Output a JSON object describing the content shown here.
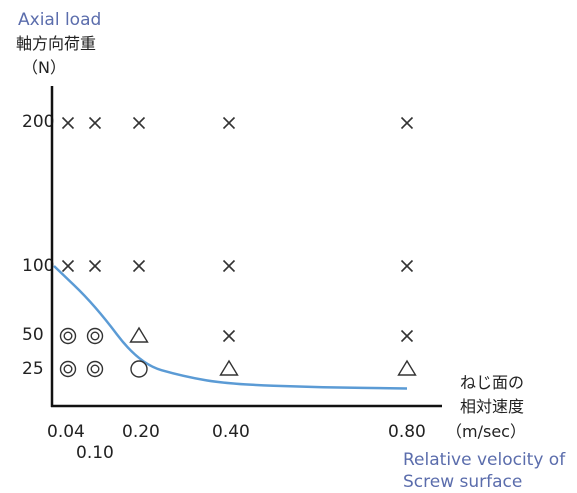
{
  "chart_data": {
    "type": "scatter",
    "title": "",
    "y_axis": {
      "label_en": "Axial load",
      "label_ja": "軸方向荷重",
      "unit": "（N）",
      "ticks": [
        "200",
        "100",
        "50",
        "25"
      ],
      "tick_values": [
        200,
        100,
        50,
        25
      ]
    },
    "x_axis": {
      "label_ja_line1": "ねじ面の",
      "label_ja_line2": "相対速度",
      "unit": "（m/sec）",
      "label_en_line1": "Relative velocity of",
      "label_en_line2": "Screw surface",
      "ticks": [
        "0.04",
        "0.10",
        "0.20",
        "0.40",
        "0.80"
      ],
      "tick_values": [
        0.04,
        0.1,
        0.2,
        0.4,
        0.8
      ]
    },
    "markers": {
      "×": [
        [
          0.04,
          200
        ],
        [
          0.1,
          200
        ],
        [
          0.2,
          200
        ],
        [
          0.4,
          200
        ],
        [
          0.8,
          200
        ],
        [
          0.04,
          100
        ],
        [
          0.1,
          100
        ],
        [
          0.2,
          100
        ],
        [
          0.4,
          100
        ],
        [
          0.8,
          100
        ],
        [
          0.4,
          50
        ],
        [
          0.8,
          50
        ]
      ],
      "△": [
        [
          0.2,
          50
        ],
        [
          0.4,
          25
        ],
        [
          0.8,
          25
        ]
      ],
      "○": [
        [
          0.2,
          25
        ]
      ],
      "◎": [
        [
          0.04,
          50
        ],
        [
          0.1,
          50
        ],
        [
          0.04,
          25
        ],
        [
          0.1,
          25
        ]
      ]
    },
    "boundary_curve": [
      [
        0.04,
        100
      ],
      [
        0.1,
        72
      ],
      [
        0.2,
        29
      ],
      [
        0.3,
        18
      ],
      [
        0.4,
        11
      ],
      [
        0.6,
        8
      ],
      [
        0.8,
        7
      ]
    ],
    "colors": {
      "curve": "#5b9bd5",
      "axis_en_label": "#5b6dac",
      "marks": "#333333"
    }
  }
}
